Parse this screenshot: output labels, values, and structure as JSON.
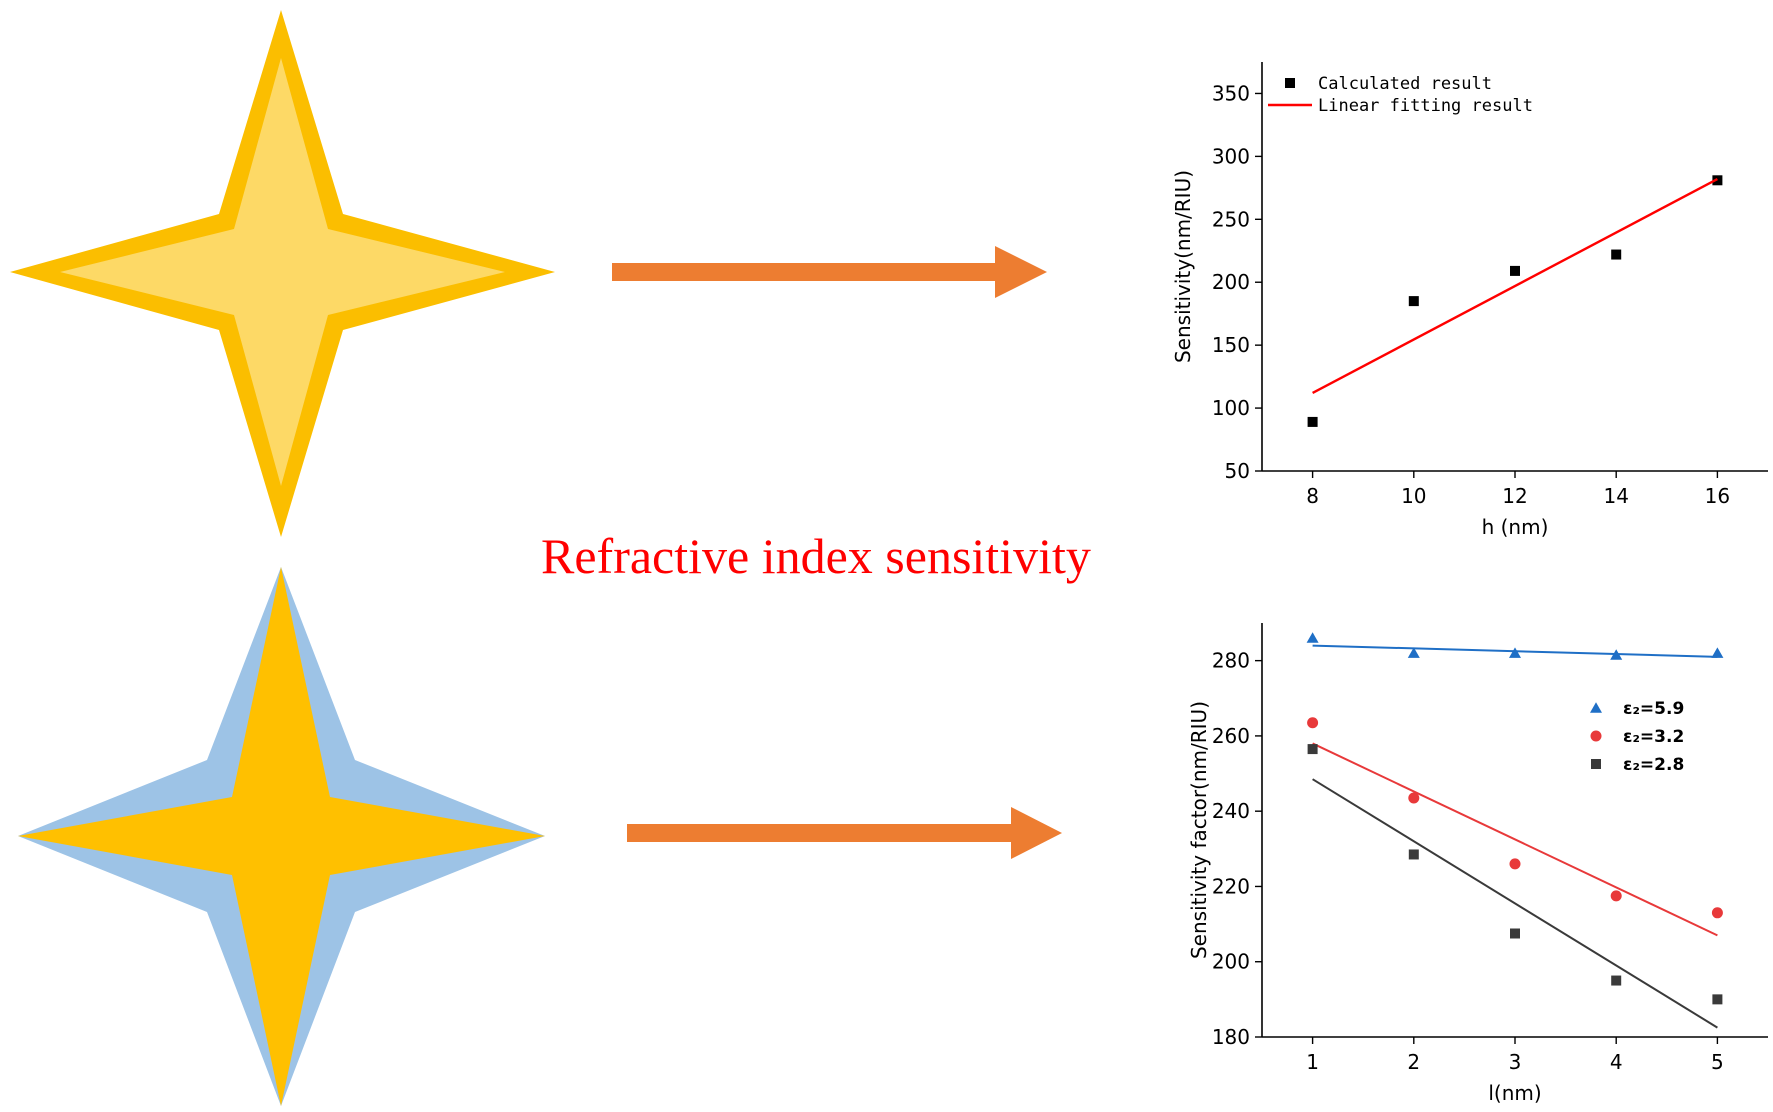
{
  "headline": "Refractive index sensitivity",
  "colors": {
    "gold_outer": "#fbbe00",
    "gold_inner": "#fdd966",
    "blue_outer": "#9dc3e6",
    "gold_core": "#ffc000",
    "arrow": "#ed7d31",
    "headline": "#ff0000"
  },
  "illustrations": [
    {
      "name": "gold-star-icon",
      "description_label": ""
    },
    {
      "name": "blue-gold-star-icon",
      "description_label": ""
    }
  ],
  "chart_data": [
    {
      "type": "scatter",
      "title": "",
      "xlabel": "h (nm)",
      "ylabel": "Sensitivity(nm/RIU)",
      "xlim": [
        7,
        17
      ],
      "ylim": [
        50,
        375
      ],
      "xticks": [
        8,
        10,
        12,
        14,
        16
      ],
      "yticks": [
        50,
        100,
        150,
        200,
        250,
        300,
        350
      ],
      "series": [
        {
          "name": "Calculated result",
          "kind": "scatter",
          "marker": "square",
          "color": "#000000",
          "x": [
            8,
            10,
            12,
            14,
            16
          ],
          "y": [
            89,
            185,
            209,
            222,
            281
          ]
        },
        {
          "name": "Linear fitting result",
          "kind": "line",
          "color": "#ff0000",
          "x": [
            8,
            16
          ],
          "y": [
            112,
            282
          ]
        }
      ],
      "legend": "top-left",
      "grid": false
    },
    {
      "type": "scatter",
      "title": "",
      "xlabel": "l(nm)",
      "ylabel": "Sensitivity factor(nm/RIU)",
      "xlim": [
        0.5,
        5.5
      ],
      "ylim": [
        180,
        290
      ],
      "xticks": [
        1,
        2,
        3,
        4,
        5
      ],
      "yticks": [
        180,
        200,
        220,
        240,
        260,
        280
      ],
      "series": [
        {
          "name": "ε₂=5.9",
          "kind": "scatter",
          "marker": "triangle",
          "color": "#1f6fc6",
          "x": [
            1,
            2,
            3,
            4,
            5
          ],
          "y": [
            286,
            282,
            282,
            281.5,
            282
          ]
        },
        {
          "name": "ε₂=3.2",
          "kind": "scatter",
          "marker": "circle",
          "color": "#e8393a",
          "x": [
            1,
            2,
            3,
            4,
            5
          ],
          "y": [
            263.5,
            243.5,
            226,
            217.5,
            213
          ]
        },
        {
          "name": "ε₂=2.8",
          "kind": "scatter",
          "marker": "square",
          "color": "#3a3a3a",
          "x": [
            1,
            2,
            3,
            4,
            5
          ],
          "y": [
            256.5,
            228.5,
            207.5,
            195,
            190
          ]
        }
      ],
      "fits": [
        {
          "color": "#1f6fc6",
          "x": [
            1,
            5
          ],
          "y": [
            284,
            281
          ]
        },
        {
          "color": "#e8393a",
          "x": [
            1,
            5
          ],
          "y": [
            258,
            207
          ]
        },
        {
          "color": "#3a3a3a",
          "x": [
            1,
            5
          ],
          "y": [
            248.5,
            182.5
          ]
        }
      ],
      "legend": "top-right",
      "grid": false
    }
  ]
}
